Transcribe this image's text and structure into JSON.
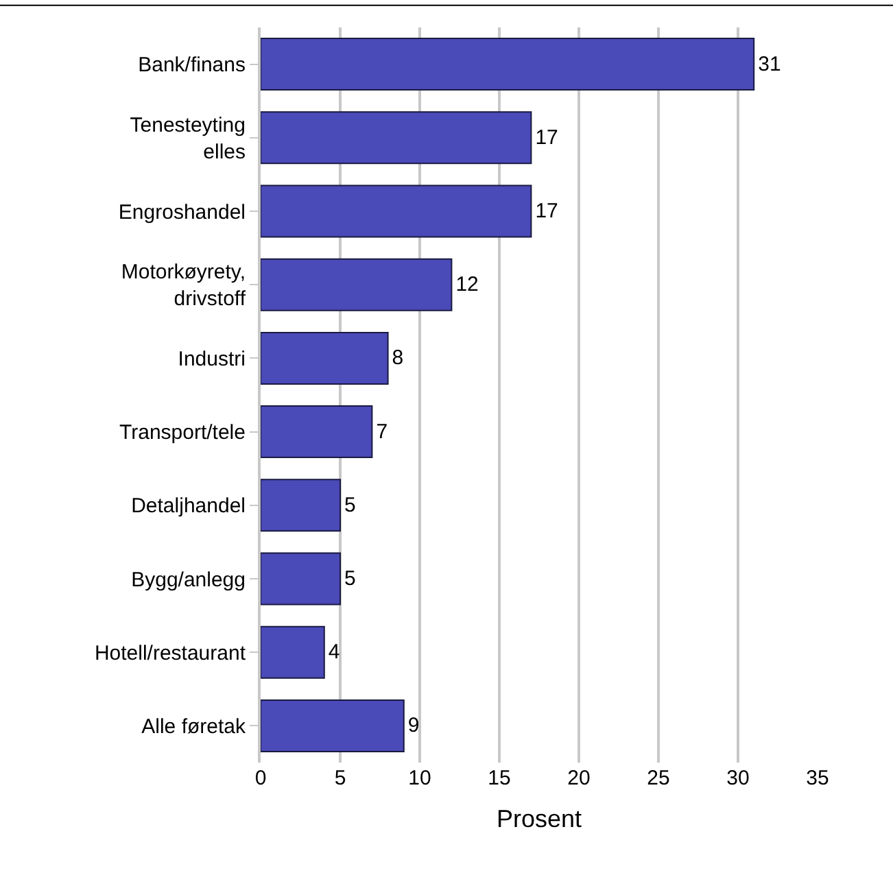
{
  "chart_data": {
    "type": "bar",
    "orientation": "horizontal",
    "xlabel": "Prosent",
    "categories": [
      "Bank/finans",
      "Tenesteyting elles",
      "Engroshandel",
      "Motorkøyrety, drivstoff",
      "Industri",
      "Transport/tele",
      "Detaljhandel",
      "Bygg/anlegg",
      "Hotell/restaurant",
      "Alle føretak"
    ],
    "values": [
      31,
      17,
      17,
      12,
      8,
      7,
      5,
      5,
      4,
      9
    ],
    "color": "#4a4ab8",
    "data_labels": true,
    "xlim": [
      0,
      35
    ],
    "xticks": [
      0,
      5,
      10,
      15,
      20,
      25,
      30,
      35
    ],
    "grid": "x"
  }
}
